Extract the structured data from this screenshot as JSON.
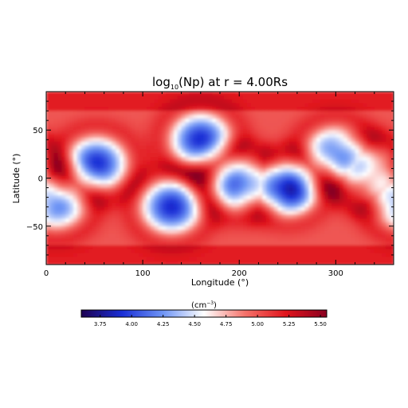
{
  "chart_data": {
    "type": "heatmap",
    "title_main": "log",
    "title_sub": "10",
    "title_rest": "(Np) at r = 4.00Rs",
    "xlabel": "Longitude (°)",
    "ylabel": "Latitude (°)",
    "xlim": [
      0,
      360
    ],
    "ylim": [
      -90,
      90
    ],
    "x_ticks": [
      0,
      100,
      200,
      300
    ],
    "y_ticks": [
      -50,
      0,
      50
    ],
    "x_tick_labels": [
      "0",
      "100",
      "200",
      "300"
    ],
    "y_tick_labels": [
      "−50",
      "0",
      "50"
    ],
    "colorbar": {
      "label_base": "(cm",
      "label_exp": "−3",
      "label_close": ")",
      "range": [
        3.6,
        5.55
      ],
      "ticks": [
        3.75,
        4.0,
        4.25,
        4.5,
        4.75,
        5.0,
        5.25,
        5.5
      ],
      "tick_labels": [
        "3.75",
        "4.00",
        "4.25",
        "4.50",
        "4.75",
        "5.00",
        "5.25",
        "5.50"
      ]
    },
    "colormap": [
      "#1c0050",
      "#1a2fd6",
      "#6f95f5",
      "#ffffff",
      "#f5736b",
      "#e0141c",
      "#8a0020"
    ],
    "field": {
      "background": 5.0,
      "cells": [
        {
          "lon": 10,
          "lat": -25,
          "min": 4.1
        },
        {
          "lon": 52,
          "lat": 15,
          "min": 3.95
        },
        {
          "lon": 130,
          "lat": -30,
          "min": 3.95
        },
        {
          "lon": 160,
          "lat": 40,
          "min": 3.95
        },
        {
          "lon": 200,
          "lat": -5,
          "min": 4.0
        },
        {
          "lon": 250,
          "lat": -10,
          "min": 3.7
        },
        {
          "lon": 300,
          "lat": 25,
          "min": 4.05
        },
        {
          "lon": 335,
          "lat": 5,
          "min": 4.2
        }
      ]
    }
  }
}
